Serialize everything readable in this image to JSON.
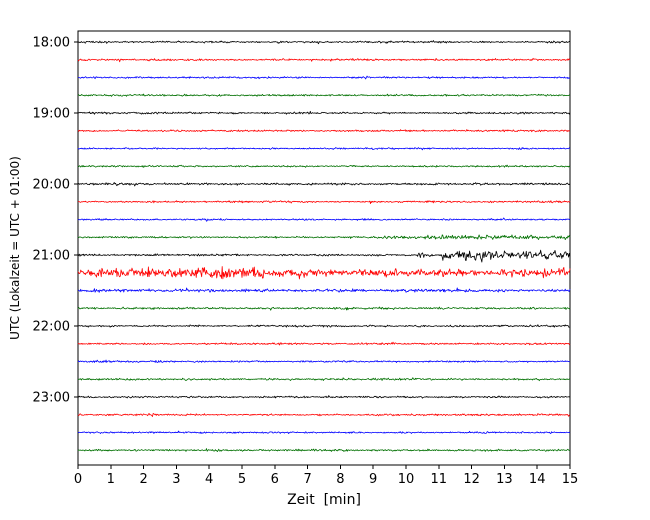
{
  "chart_data": {
    "type": "line",
    "subtype": "helicorder",
    "title": "",
    "xlabel": "Zeit  [min]",
    "ylabel": "UTC (Lokalzeit = UTC + 01:00)",
    "xlim": [
      0,
      15
    ],
    "x_ticks": [
      0,
      1,
      2,
      3,
      4,
      5,
      6,
      7,
      8,
      9,
      10,
      11,
      12,
      13,
      14,
      15
    ],
    "y_ticks": [
      "18:00",
      "19:00",
      "20:00",
      "21:00",
      "22:00",
      "23:00"
    ],
    "minutes_per_line": 15,
    "colors": {
      "black": "#000000",
      "red": "#ff0000",
      "blue": "#0000ff",
      "green": "#007000"
    },
    "traces": [
      {
        "time": "18:00",
        "color": "black",
        "base": 0.8,
        "events": []
      },
      {
        "time": "18:15",
        "color": "red",
        "base": 0.8,
        "events": []
      },
      {
        "time": "18:30",
        "color": "blue",
        "base": 0.7,
        "events": []
      },
      {
        "time": "18:45",
        "color": "green",
        "base": 0.8,
        "events": []
      },
      {
        "time": "19:00",
        "color": "black",
        "base": 0.8,
        "events": [
          {
            "type": "flat",
            "t0": 6.3,
            "t1": 7.2,
            "amp": 1.1
          }
        ]
      },
      {
        "time": "19:15",
        "color": "red",
        "base": 0.8,
        "events": []
      },
      {
        "time": "19:30",
        "color": "blue",
        "base": 0.7,
        "events": []
      },
      {
        "time": "19:45",
        "color": "green",
        "base": 0.8,
        "events": []
      },
      {
        "time": "20:00",
        "color": "black",
        "base": 0.9,
        "events": [
          {
            "type": "flat",
            "t0": 0.8,
            "t1": 2.0,
            "amp": 1.2
          }
        ]
      },
      {
        "time": "20:15",
        "color": "red",
        "base": 0.8,
        "events": []
      },
      {
        "time": "20:30",
        "color": "blue",
        "base": 0.7,
        "events": []
      },
      {
        "time": "20:45",
        "color": "green",
        "base": 0.8,
        "events": [
          {
            "type": "flat",
            "t0": 8.8,
            "t1": 11.7,
            "amp": 1.6
          },
          {
            "type": "flat",
            "t0": 11.7,
            "t1": 13.4,
            "amp": 2.4
          },
          {
            "type": "flat",
            "t0": 13.4,
            "t1": 15,
            "amp": 1.8
          }
        ]
      },
      {
        "time": "21:00",
        "color": "black",
        "base": 0.8,
        "events": [
          {
            "type": "spike",
            "t": 10.45,
            "w": 0.1,
            "amp": 3.0
          },
          {
            "type": "spike",
            "t": 10.78,
            "w": 0.08,
            "amp": 2.2
          },
          {
            "type": "flat",
            "t0": 11.05,
            "t1": 11.6,
            "amp": 4.4
          },
          {
            "type": "flat",
            "t0": 11.6,
            "t1": 12.6,
            "amp": 5.0
          },
          {
            "type": "flat",
            "t0": 12.6,
            "t1": 13.6,
            "amp": 3.0
          },
          {
            "type": "flat",
            "t0": 13.6,
            "t1": 15,
            "amp": 3.8
          }
        ]
      },
      {
        "time": "21:15",
        "color": "red",
        "base": 2.8,
        "events": [
          {
            "type": "flat",
            "t0": 0,
            "t1": 0.5,
            "amp": 3.2
          },
          {
            "type": "flat",
            "t0": 0.5,
            "t1": 1.9,
            "amp": 4.6
          },
          {
            "type": "flat",
            "t0": 1.9,
            "t1": 5.8,
            "amp": 5.4
          },
          {
            "type": "flat",
            "t0": 5.8,
            "t1": 9.2,
            "amp": 3.4
          },
          {
            "type": "flat",
            "t0": 9.2,
            "t1": 13.2,
            "amp": 3.0
          },
          {
            "type": "flat",
            "t0": 13.2,
            "t1": 15,
            "amp": 4.0
          }
        ]
      },
      {
        "time": "21:30",
        "color": "blue",
        "base": 1.3,
        "events": []
      },
      {
        "time": "21:45",
        "color": "green",
        "base": 0.9,
        "events": []
      },
      {
        "time": "22:00",
        "color": "black",
        "base": 0.8,
        "events": []
      },
      {
        "time": "22:15",
        "color": "red",
        "base": 0.8,
        "events": []
      },
      {
        "time": "22:30",
        "color": "blue",
        "base": 0.7,
        "events": [
          {
            "type": "spike",
            "t": 0.55,
            "w": 0.07,
            "amp": 5.0
          },
          {
            "type": "flat",
            "t0": 0.65,
            "t1": 1.6,
            "amp": 1.2
          }
        ]
      },
      {
        "time": "22:45",
        "color": "green",
        "base": 0.8,
        "events": []
      },
      {
        "time": "23:00",
        "color": "black",
        "base": 0.8,
        "events": []
      },
      {
        "time": "23:15",
        "color": "red",
        "base": 0.8,
        "events": []
      },
      {
        "time": "23:30",
        "color": "blue",
        "base": 0.7,
        "events": []
      },
      {
        "time": "23:45",
        "color": "green",
        "base": 0.8,
        "events": []
      }
    ]
  }
}
